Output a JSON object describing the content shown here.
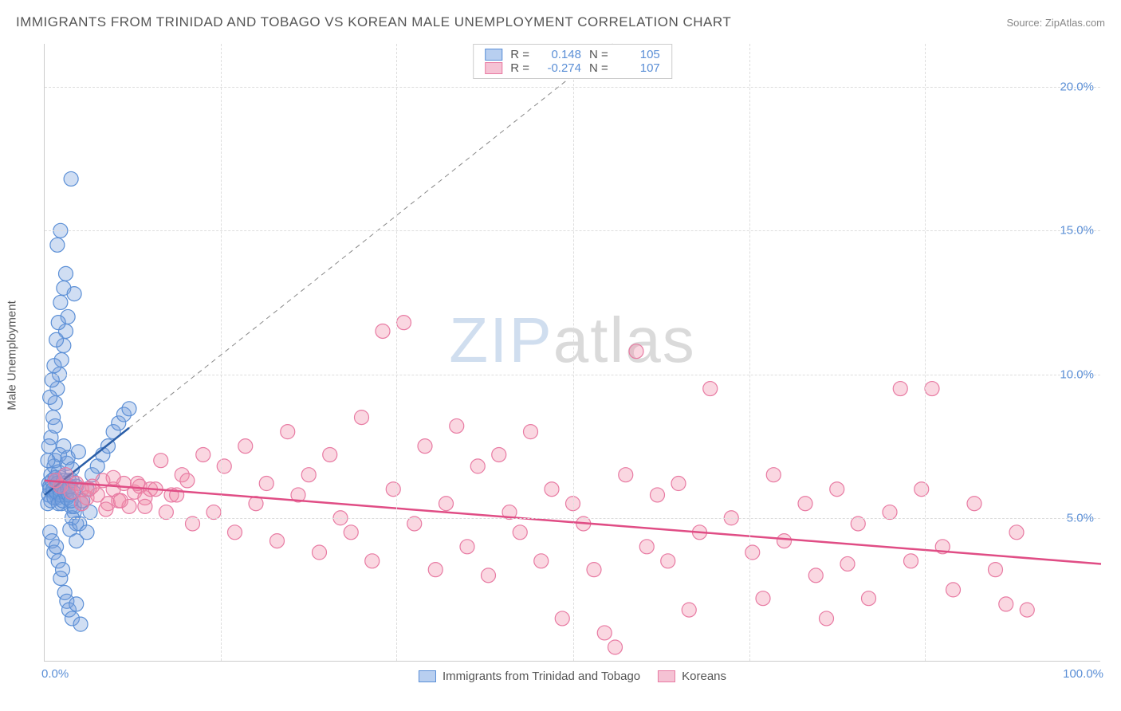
{
  "title": "IMMIGRANTS FROM TRINIDAD AND TOBAGO VS KOREAN MALE UNEMPLOYMENT CORRELATION CHART",
  "source": "Source: ZipAtlas.com",
  "watermark_zip": "ZIP",
  "watermark_atlas": "atlas",
  "y_axis_label": "Male Unemployment",
  "chart": {
    "type": "scatter",
    "background_color": "#ffffff",
    "grid_color": "#dddddd",
    "axis_color": "#cccccc",
    "xlim": [
      0,
      100
    ],
    "ylim": [
      0,
      21.5
    ],
    "x_ticks": [
      0,
      16.7,
      33.3,
      50,
      66.7,
      83.3,
      100
    ],
    "y_ticks": [
      5,
      10,
      15,
      20
    ],
    "y_tick_labels": [
      "5.0%",
      "10.0%",
      "15.0%",
      "20.0%"
    ],
    "x_min_label": "0.0%",
    "x_max_label": "100.0%",
    "marker_radius": 9,
    "marker_stroke_width": 1.2,
    "series": [
      {
        "name": "Immigrants from Trinidad and Tobago",
        "fill_color": "rgba(120,160,220,0.35)",
        "stroke_color": "#5b8fd6",
        "swatch_fill": "#b8cff0",
        "swatch_border": "#5b8fd6",
        "R": "0.148",
        "N": "105",
        "trend": {
          "x1": 0,
          "y1": 5.8,
          "x2": 100,
          "y2": 35,
          "color": "#2b5fa8",
          "width": 2.5
        },
        "dash_extend": true,
        "points": [
          [
            0.4,
            6.2
          ],
          [
            0.5,
            6.1
          ],
          [
            0.6,
            6.5
          ],
          [
            0.8,
            5.9
          ],
          [
            0.9,
            6.8
          ],
          [
            1.0,
            7.0
          ],
          [
            1.1,
            6.3
          ],
          [
            1.2,
            5.7
          ],
          [
            1.3,
            6.6
          ],
          [
            1.4,
            7.2
          ],
          [
            1.5,
            6.4
          ],
          [
            1.6,
            5.5
          ],
          [
            1.7,
            6.0
          ],
          [
            1.8,
            7.5
          ],
          [
            1.9,
            6.2
          ],
          [
            2.0,
            5.8
          ],
          [
            2.1,
            6.9
          ],
          [
            2.2,
            7.1
          ],
          [
            2.3,
            6.3
          ],
          [
            2.5,
            5.4
          ],
          [
            2.6,
            6.7
          ],
          [
            2.8,
            5.2
          ],
          [
            3.0,
            6.1
          ],
          [
            3.2,
            7.3
          ],
          [
            0.5,
            4.5
          ],
          [
            0.7,
            4.2
          ],
          [
            0.9,
            3.8
          ],
          [
            1.1,
            4.0
          ],
          [
            1.3,
            3.5
          ],
          [
            1.5,
            2.9
          ],
          [
            1.7,
            3.2
          ],
          [
            1.9,
            2.4
          ],
          [
            2.1,
            2.1
          ],
          [
            2.3,
            1.8
          ],
          [
            2.6,
            1.5
          ],
          [
            3.0,
            2.0
          ],
          [
            3.4,
            1.3
          ],
          [
            3.0,
            4.8
          ],
          [
            3.5,
            5.5
          ],
          [
            4.0,
            6.0
          ],
          [
            4.5,
            6.5
          ],
          [
            5.0,
            6.8
          ],
          [
            5.5,
            7.2
          ],
          [
            6.0,
            7.5
          ],
          [
            6.5,
            8.0
          ],
          [
            7.0,
            8.3
          ],
          [
            7.5,
            8.6
          ],
          [
            8.0,
            8.8
          ],
          [
            0.8,
            8.5
          ],
          [
            1.0,
            9.0
          ],
          [
            1.2,
            9.5
          ],
          [
            1.4,
            10.0
          ],
          [
            1.6,
            10.5
          ],
          [
            1.8,
            11.0
          ],
          [
            2.0,
            11.5
          ],
          [
            2.2,
            12.0
          ],
          [
            1.5,
            12.5
          ],
          [
            1.8,
            13.0
          ],
          [
            2.0,
            13.5
          ],
          [
            2.8,
            12.8
          ],
          [
            1.2,
            14.5
          ],
          [
            1.5,
            15.0
          ],
          [
            2.5,
            16.8
          ],
          [
            1.0,
            8.2
          ],
          [
            0.6,
            7.8
          ],
          [
            0.4,
            7.5
          ],
          [
            0.3,
            7.0
          ],
          [
            0.5,
            9.2
          ],
          [
            0.7,
            9.8
          ],
          [
            0.9,
            10.3
          ],
          [
            1.1,
            11.2
          ],
          [
            1.3,
            11.8
          ],
          [
            2.4,
            4.6
          ],
          [
            2.6,
            5.0
          ],
          [
            2.8,
            5.4
          ],
          [
            3.0,
            4.2
          ],
          [
            3.3,
            4.8
          ],
          [
            3.6,
            5.6
          ],
          [
            4.0,
            4.5
          ],
          [
            4.3,
            5.2
          ],
          [
            0.3,
            5.5
          ],
          [
            0.4,
            5.8
          ],
          [
            0.5,
            6.0
          ],
          [
            0.6,
            5.6
          ],
          [
            0.7,
            6.3
          ],
          [
            0.8,
            6.0
          ],
          [
            0.9,
            5.7
          ],
          [
            1.0,
            6.4
          ],
          [
            1.1,
            5.9
          ],
          [
            1.2,
            6.2
          ],
          [
            1.3,
            5.5
          ],
          [
            1.4,
            6.0
          ],
          [
            1.5,
            5.8
          ],
          [
            1.6,
            6.1
          ],
          [
            1.7,
            5.6
          ],
          [
            1.8,
            6.3
          ],
          [
            1.9,
            5.9
          ],
          [
            2.0,
            6.2
          ],
          [
            2.1,
            5.7
          ],
          [
            2.2,
            6.0
          ],
          [
            2.3,
            5.8
          ],
          [
            2.4,
            6.1
          ],
          [
            2.5,
            5.6
          ],
          [
            2.6,
            6.3
          ],
          [
            2.7,
            5.9
          ]
        ]
      },
      {
        "name": "Koreans",
        "fill_color": "rgba(240,140,170,0.35)",
        "stroke_color": "#e87ba3",
        "swatch_fill": "#f5c2d4",
        "swatch_border": "#e87ba3",
        "R": "-0.274",
        "N": "107",
        "trend": {
          "x1": 0,
          "y1": 6.3,
          "x2": 100,
          "y2": 3.4,
          "color": "#e04d85",
          "width": 2.5
        },
        "dash_extend": false,
        "points": [
          [
            1.0,
            6.3
          ],
          [
            1.5,
            6.1
          ],
          [
            2.0,
            6.5
          ],
          [
            2.5,
            5.9
          ],
          [
            3.0,
            6.2
          ],
          [
            3.5,
            6.0
          ],
          [
            4.0,
            5.7
          ],
          [
            4.5,
            6.1
          ],
          [
            5.0,
            5.8
          ],
          [
            5.5,
            6.3
          ],
          [
            6.0,
            5.5
          ],
          [
            6.5,
            6.0
          ],
          [
            7.0,
            5.6
          ],
          [
            7.5,
            6.2
          ],
          [
            8.0,
            5.4
          ],
          [
            8.5,
            5.9
          ],
          [
            9.0,
            6.1
          ],
          [
            9.5,
            5.7
          ],
          [
            10.0,
            6.0
          ],
          [
            11.0,
            7.0
          ],
          [
            12.0,
            5.8
          ],
          [
            13.0,
            6.5
          ],
          [
            14.0,
            4.8
          ],
          [
            15.0,
            7.2
          ],
          [
            16.0,
            5.2
          ],
          [
            17.0,
            6.8
          ],
          [
            18.0,
            4.5
          ],
          [
            19.0,
            7.5
          ],
          [
            20.0,
            5.5
          ],
          [
            21.0,
            6.2
          ],
          [
            22.0,
            4.2
          ],
          [
            23.0,
            8.0
          ],
          [
            24.0,
            5.8
          ],
          [
            25.0,
            6.5
          ],
          [
            26.0,
            3.8
          ],
          [
            27.0,
            7.2
          ],
          [
            28.0,
            5.0
          ],
          [
            29.0,
            4.5
          ],
          [
            30.0,
            8.5
          ],
          [
            31.0,
            3.5
          ],
          [
            32.0,
            11.5
          ],
          [
            33.0,
            6.0
          ],
          [
            34.0,
            11.8
          ],
          [
            35.0,
            4.8
          ],
          [
            36.0,
            7.5
          ],
          [
            37.0,
            3.2
          ],
          [
            38.0,
            5.5
          ],
          [
            39.0,
            8.2
          ],
          [
            40.0,
            4.0
          ],
          [
            41.0,
            6.8
          ],
          [
            42.0,
            3.0
          ],
          [
            43.0,
            7.2
          ],
          [
            44.0,
            5.2
          ],
          [
            45.0,
            4.5
          ],
          [
            46.0,
            8.0
          ],
          [
            47.0,
            3.5
          ],
          [
            48.0,
            6.0
          ],
          [
            49.0,
            1.5
          ],
          [
            50.0,
            5.5
          ],
          [
            51.0,
            4.8
          ],
          [
            52.0,
            3.2
          ],
          [
            53.0,
            1.0
          ],
          [
            54.0,
            0.5
          ],
          [
            55.0,
            6.5
          ],
          [
            56.0,
            10.8
          ],
          [
            57.0,
            4.0
          ],
          [
            58.0,
            5.8
          ],
          [
            59.0,
            3.5
          ],
          [
            60.0,
            6.2
          ],
          [
            61.0,
            1.8
          ],
          [
            62.0,
            4.5
          ],
          [
            63.0,
            9.5
          ],
          [
            65.0,
            5.0
          ],
          [
            67.0,
            3.8
          ],
          [
            68.0,
            2.2
          ],
          [
            69.0,
            6.5
          ],
          [
            70.0,
            4.2
          ],
          [
            72.0,
            5.5
          ],
          [
            73.0,
            3.0
          ],
          [
            74.0,
            1.5
          ],
          [
            75.0,
            6.0
          ],
          [
            76.0,
            3.4
          ],
          [
            77.0,
            4.8
          ],
          [
            78.0,
            2.2
          ],
          [
            80.0,
            5.2
          ],
          [
            81.0,
            9.5
          ],
          [
            82.0,
            3.5
          ],
          [
            83.0,
            6.0
          ],
          [
            84.0,
            9.5
          ],
          [
            85.0,
            4.0
          ],
          [
            86.0,
            2.5
          ],
          [
            88.0,
            5.5
          ],
          [
            90.0,
            3.2
          ],
          [
            91.0,
            2.0
          ],
          [
            92.0,
            4.5
          ],
          [
            93.0,
            1.8
          ],
          [
            3.5,
            5.5
          ],
          [
            4.2,
            6.0
          ],
          [
            5.8,
            5.3
          ],
          [
            6.5,
            6.4
          ],
          [
            7.2,
            5.6
          ],
          [
            8.8,
            6.2
          ],
          [
            9.5,
            5.4
          ],
          [
            10.5,
            6.0
          ],
          [
            11.5,
            5.2
          ],
          [
            12.5,
            5.8
          ],
          [
            13.5,
            6.3
          ]
        ]
      }
    ]
  },
  "legend": {
    "R_label": "R =",
    "N_label": "N ="
  }
}
